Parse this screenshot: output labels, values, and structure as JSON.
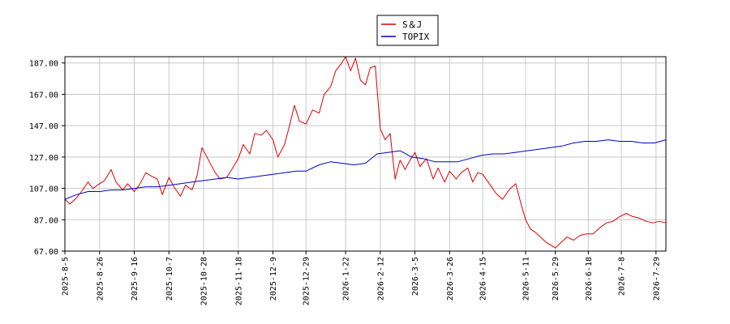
{
  "chart_data": {
    "type": "line",
    "title": "",
    "xlabel": "",
    "ylabel": "",
    "ylim": [
      67,
      191
    ],
    "yticks": [
      "187.00",
      "167.00",
      "147.00",
      "127.00",
      "107.00",
      "87.00",
      "67.00"
    ],
    "xticks": [
      "2025-8-5",
      "2025-8-26",
      "2025-9-16",
      "2025-10-7",
      "2025-10-28",
      "2025-11-18",
      "2025-12-9",
      "2025-12-29",
      "2026-1-22",
      "2026-2-12",
      "2026-3-5",
      "2026-3-26",
      "2026-4-15",
      "2026-5-11",
      "2026-5-29",
      "2026-6-18",
      "2026-7-8",
      "2026-7-29"
    ],
    "grid": true,
    "legend": "top-center",
    "series": [
      {
        "name": "S＆J",
        "color": "#dd0000",
        "points": [
          [
            "2025-8-5",
            100
          ],
          [
            "2025-8-8",
            97
          ],
          [
            "2025-8-12",
            101
          ],
          [
            "2025-8-15",
            105
          ],
          [
            "2025-8-19",
            111
          ],
          [
            "2025-8-22",
            107
          ],
          [
            "2025-8-26",
            110
          ],
          [
            "2025-8-29",
            112
          ],
          [
            "2025-9-2",
            119
          ],
          [
            "2025-9-5",
            111
          ],
          [
            "2025-9-9",
            106
          ],
          [
            "2025-9-12",
            110
          ],
          [
            "2025-9-16",
            105
          ],
          [
            "2025-9-19",
            109
          ],
          [
            "2025-9-23",
            117
          ],
          [
            "2025-9-26",
            115
          ],
          [
            "2025-9-30",
            113
          ],
          [
            "2025-10-3",
            103
          ],
          [
            "2025-10-7",
            114
          ],
          [
            "2025-10-10",
            108
          ],
          [
            "2025-10-14",
            102
          ],
          [
            "2025-10-17",
            109
          ],
          [
            "2025-10-21",
            106
          ],
          [
            "2025-10-24",
            115
          ],
          [
            "2025-10-27",
            133
          ],
          [
            "2025-10-31",
            125
          ],
          [
            "2025-11-4",
            117
          ],
          [
            "2025-11-7",
            113
          ],
          [
            "2025-11-11",
            114
          ],
          [
            "2025-11-14",
            119
          ],
          [
            "2025-11-18",
            126
          ],
          [
            "2025-11-21",
            135
          ],
          [
            "2025-11-25",
            129
          ],
          [
            "2025-11-28",
            142
          ],
          [
            "2025-12-2",
            141
          ],
          [
            "2025-12-5",
            144
          ],
          [
            "2025-12-9",
            138
          ],
          [
            "2025-12-12",
            127
          ],
          [
            "2025-12-16",
            135
          ],
          [
            "2025-12-19",
            147
          ],
          [
            "2025-12-22",
            160
          ],
          [
            "2025-12-25",
            150
          ],
          [
            "2025-12-29",
            148
          ],
          [
            "2026-1-2",
            157
          ],
          [
            "2026-1-6",
            155
          ],
          [
            "2026-1-9",
            167
          ],
          [
            "2026-1-13",
            172
          ],
          [
            "2026-1-16",
            182
          ],
          [
            "2026-1-19",
            186
          ],
          [
            "2026-1-22",
            191
          ],
          [
            "2026-1-25",
            182
          ],
          [
            "2026-1-28",
            190
          ],
          [
            "2026-1-31",
            176
          ],
          [
            "2026-2-3",
            173
          ],
          [
            "2026-2-6",
            184
          ],
          [
            "2026-2-9",
            185
          ],
          [
            "2026-2-12",
            145
          ],
          [
            "2026-2-15",
            138
          ],
          [
            "2026-2-18",
            142
          ],
          [
            "2026-2-21",
            113
          ],
          [
            "2026-2-24",
            125
          ],
          [
            "2026-2-27",
            119
          ],
          [
            "2026-3-2",
            125
          ],
          [
            "2026-3-5",
            130
          ],
          [
            "2026-3-8",
            121
          ],
          [
            "2026-3-12",
            126
          ],
          [
            "2026-3-16",
            113
          ],
          [
            "2026-3-19",
            120
          ],
          [
            "2026-3-23",
            111
          ],
          [
            "2026-3-26",
            118
          ],
          [
            "2026-3-30",
            113
          ],
          [
            "2026-4-2",
            117
          ],
          [
            "2026-4-6",
            120
          ],
          [
            "2026-4-9",
            111
          ],
          [
            "2026-4-12",
            117
          ],
          [
            "2026-4-15",
            116
          ],
          [
            "2026-4-19",
            110
          ],
          [
            "2026-4-23",
            104
          ],
          [
            "2026-4-27",
            100
          ],
          [
            "2026-5-1",
            106
          ],
          [
            "2026-5-5",
            110
          ],
          [
            "2026-5-8",
            98
          ],
          [
            "2026-5-11",
            87
          ],
          [
            "2026-5-14",
            81
          ],
          [
            "2026-5-17",
            79
          ],
          [
            "2026-5-20",
            76
          ],
          [
            "2026-5-23",
            73
          ],
          [
            "2026-5-26",
            71
          ],
          [
            "2026-5-29",
            69
          ],
          [
            "2026-6-1",
            72
          ],
          [
            "2026-6-5",
            76
          ],
          [
            "2026-6-9",
            74
          ],
          [
            "2026-6-13",
            77
          ],
          [
            "2026-6-17",
            78
          ],
          [
            "2026-6-21",
            78
          ],
          [
            "2026-6-25",
            82
          ],
          [
            "2026-6-29",
            85
          ],
          [
            "2026-7-3",
            86
          ],
          [
            "2026-7-7",
            89
          ],
          [
            "2026-7-11",
            91
          ],
          [
            "2026-7-15",
            89
          ],
          [
            "2026-7-19",
            88
          ],
          [
            "2026-7-23",
            86
          ],
          [
            "2026-7-27",
            85
          ],
          [
            "2026-7-31",
            86
          ],
          [
            "2026-8-4",
            85
          ]
        ]
      },
      {
        "name": "TOPIX",
        "color": "#0000cc",
        "points": [
          [
            "2025-8-5",
            100
          ],
          [
            "2025-8-12",
            103
          ],
          [
            "2025-8-19",
            105
          ],
          [
            "2025-8-26",
            105
          ],
          [
            "2025-9-2",
            106
          ],
          [
            "2025-9-9",
            106
          ],
          [
            "2025-9-16",
            107
          ],
          [
            "2025-9-23",
            108
          ],
          [
            "2025-9-30",
            108
          ],
          [
            "2025-10-7",
            109
          ],
          [
            "2025-10-14",
            110
          ],
          [
            "2025-10-21",
            111
          ],
          [
            "2025-10-28",
            112
          ],
          [
            "2025-11-4",
            113
          ],
          [
            "2025-11-11",
            114
          ],
          [
            "2025-11-18",
            113
          ],
          [
            "2025-11-25",
            114
          ],
          [
            "2025-12-2",
            115
          ],
          [
            "2025-12-9",
            116
          ],
          [
            "2025-12-16",
            117
          ],
          [
            "2025-12-23",
            118
          ],
          [
            "2025-12-29",
            118
          ],
          [
            "2026-1-6",
            122
          ],
          [
            "2026-1-13",
            124
          ],
          [
            "2026-1-20",
            123
          ],
          [
            "2026-1-27",
            122
          ],
          [
            "2026-2-3",
            123
          ],
          [
            "2026-2-10",
            129
          ],
          [
            "2026-2-17",
            130
          ],
          [
            "2026-2-24",
            131
          ],
          [
            "2026-3-3",
            127
          ],
          [
            "2026-3-10",
            126
          ],
          [
            "2026-3-17",
            124
          ],
          [
            "2026-3-24",
            124
          ],
          [
            "2026-3-31",
            124
          ],
          [
            "2026-4-7",
            126
          ],
          [
            "2026-4-14",
            128
          ],
          [
            "2026-4-21",
            129
          ],
          [
            "2026-4-28",
            129
          ],
          [
            "2026-5-5",
            130
          ],
          [
            "2026-5-12",
            131
          ],
          [
            "2026-5-19",
            132
          ],
          [
            "2026-5-26",
            133
          ],
          [
            "2026-6-2",
            134
          ],
          [
            "2026-6-9",
            136
          ],
          [
            "2026-6-16",
            137
          ],
          [
            "2026-6-23",
            137
          ],
          [
            "2026-6-30",
            138
          ],
          [
            "2026-7-7",
            137
          ],
          [
            "2026-7-14",
            137
          ],
          [
            "2026-7-21",
            136
          ],
          [
            "2026-7-28",
            136
          ],
          [
            "2026-8-4",
            138
          ]
        ]
      }
    ]
  }
}
